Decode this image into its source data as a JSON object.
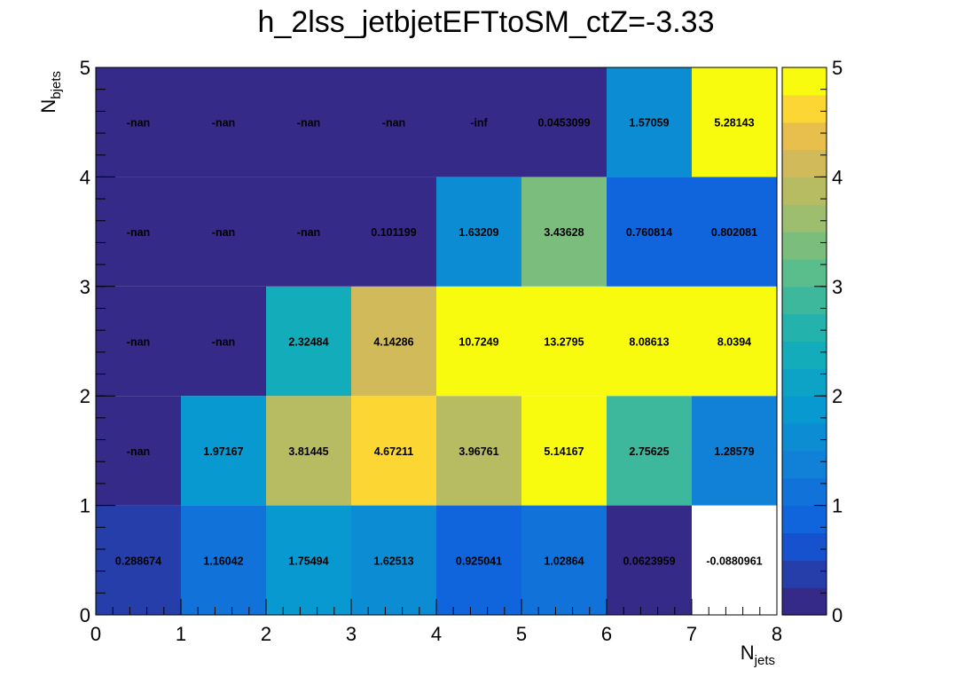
{
  "chart_data": {
    "type": "heatmap",
    "title": "h_2lss_jetbjetEFTtoSM_ctZ=-3.33",
    "xlabel_base": "N",
    "xlabel_sub": "jets",
    "ylabel_base": "N",
    "ylabel_sub": "bjets",
    "x_edges": [
      0,
      1,
      2,
      3,
      4,
      5,
      6,
      7,
      8
    ],
    "y_edges": [
      0,
      1,
      2,
      3,
      4,
      5
    ],
    "x_ticks": [
      "0",
      "1",
      "2",
      "3",
      "4",
      "5",
      "6",
      "7",
      "8"
    ],
    "y_ticks": [
      "0",
      "1",
      "2",
      "3",
      "4",
      "5"
    ],
    "xlim": [
      0,
      8
    ],
    "ylim": [
      0,
      5
    ],
    "zlim": [
      0,
      5
    ],
    "z_ticks": [
      "0",
      "1",
      "2",
      "3",
      "4",
      "5"
    ],
    "colormap": "parula",
    "colors": {
      "nan_fill": "#352a87",
      "below_min_fill": "#ffffff",
      "axis": "#000000"
    },
    "rows": [
      {
        "nbjets": 0,
        "values": [
          0.288674,
          1.16042,
          1.75494,
          1.62513,
          0.925041,
          1.02864,
          0.0623959,
          -0.0880961
        ],
        "labels": [
          "0.288674",
          "1.16042",
          "1.75494",
          "1.62513",
          "0.925041",
          "1.02864",
          "0.0623959",
          "-0.0880961"
        ]
      },
      {
        "nbjets": 1,
        "values": [
          null,
          1.97167,
          3.81445,
          4.67211,
          3.96761,
          5.14167,
          2.75625,
          1.28579
        ],
        "labels": [
          "-nan",
          "1.97167",
          "3.81445",
          "4.67211",
          "3.96761",
          "5.14167",
          "2.75625",
          "1.28579"
        ]
      },
      {
        "nbjets": 2,
        "values": [
          null,
          null,
          2.32484,
          4.14286,
          10.7249,
          13.2795,
          8.08613,
          8.0394
        ],
        "labels": [
          "-nan",
          "-nan",
          "2.32484",
          "4.14286",
          "10.7249",
          "13.2795",
          "8.08613",
          "8.0394"
        ]
      },
      {
        "nbjets": 3,
        "values": [
          null,
          null,
          null,
          0.101199,
          1.63209,
          3.43628,
          0.760814,
          0.802081
        ],
        "labels": [
          "-nan",
          "-nan",
          "-nan",
          "0.101199",
          "1.63209",
          "3.43628",
          "0.760814",
          "0.802081"
        ]
      },
      {
        "nbjets": 4,
        "values": [
          null,
          null,
          null,
          null,
          null,
          0.0453099,
          1.57059,
          5.28143
        ],
        "labels": [
          "-nan",
          "-nan",
          "-nan",
          "-nan",
          "-inf",
          "0.0453099",
          "1.57059",
          "5.28143"
        ]
      }
    ]
  }
}
